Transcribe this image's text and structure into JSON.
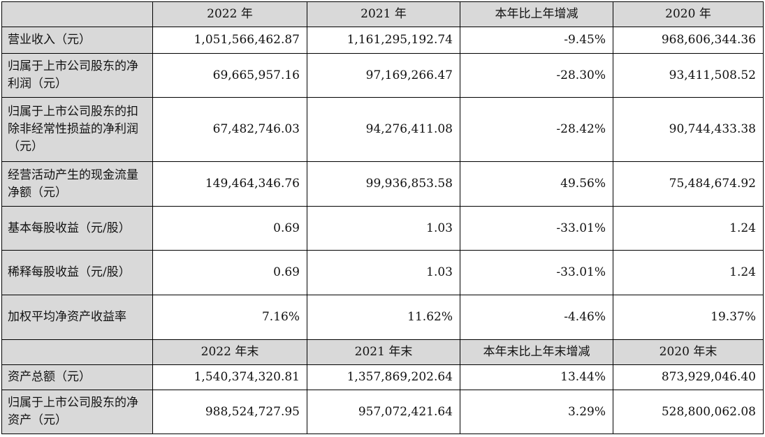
{
  "header1": [
    "2022 年",
    "2021 年",
    "本年比上年增减",
    "2020 年"
  ],
  "rows1": [
    {
      "label": "营业收入（元）",
      "values": [
        "1,051,566,462.87",
        "1,161,295,192.74",
        "-9.45%",
        "968,606,344.36"
      ]
    },
    {
      "label": "归属于上市公司股东的净利润（元）",
      "values": [
        "69,665,957.16",
        "97,169,266.47",
        "-28.30%",
        "93,411,508.52"
      ]
    },
    {
      "label": "归属于上市公司股东的扣除非经常性损益的净利润（元）",
      "values": [
        "67,482,746.03",
        "94,276,411.08",
        "-28.42%",
        "90,744,433.38"
      ]
    },
    {
      "label": "经营活动产生的现金流量净额（元）",
      "values": [
        "149,464,346.76",
        "99,936,853.58",
        "49.56%",
        "75,484,674.92"
      ]
    },
    {
      "label": "基本每股收益（元/股）",
      "values": [
        "0.69",
        "1.03",
        "-33.01%",
        "1.24"
      ]
    },
    {
      "label": "稀释每股收益（元/股）",
      "values": [
        "0.69",
        "1.03",
        "-33.01%",
        "1.24"
      ]
    },
    {
      "label": "加权平均净资产收益率",
      "values": [
        "7.16%",
        "11.62%",
        "-4.46%",
        "19.37%"
      ]
    }
  ],
  "header2": [
    "2022 年末",
    "2021 年末",
    "本年末比上年末增减",
    "2020 年末"
  ],
  "rows2": [
    {
      "label": "资产总额（元）",
      "values": [
        "1,540,374,320.81",
        "1,357,869,202.64",
        "13.44%",
        "873,929,046.40"
      ]
    },
    {
      "label": "归属于上市公司股东的净资产（元）",
      "values": [
        "988,524,727.95",
        "957,072,421.64",
        "3.29%",
        "528,800,062.08"
      ]
    }
  ]
}
